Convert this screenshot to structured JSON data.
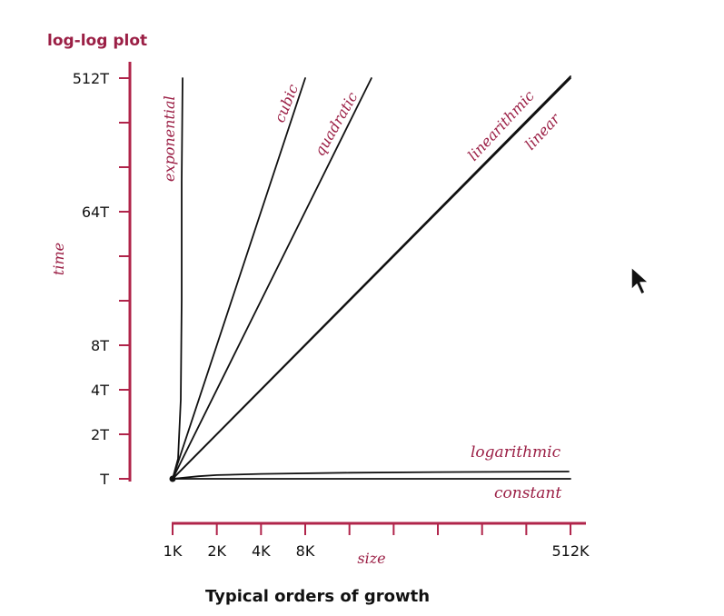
{
  "chart_data": {
    "type": "line",
    "title": "log-log plot",
    "caption": "Typical orders of growth",
    "xlabel": "size",
    "ylabel": "time",
    "x_scale": "log2",
    "y_scale": "log2",
    "x_ticks": [
      "1K",
      "2K",
      "4K",
      "8K",
      "512K"
    ],
    "y_ticks": [
      "T",
      "2T",
      "4T",
      "8T",
      "64T",
      "512T"
    ],
    "series": [
      {
        "name": "exponential",
        "x": [
          1,
          1.0005,
          1.002,
          1.005,
          1.01,
          1.02
        ],
        "y": [
          1,
          2,
          8,
          64,
          512,
          512
        ]
      },
      {
        "name": "cubic",
        "x": [
          1,
          8
        ],
        "y": [
          1,
          512
        ]
      },
      {
        "name": "quadratic",
        "x": [
          1,
          22.6
        ],
        "y": [
          1,
          512
        ]
      },
      {
        "name": "linearithmic",
        "x": [
          1,
          512
        ],
        "y": [
          1,
          630
        ]
      },
      {
        "name": "linear",
        "x": [
          1,
          512
        ],
        "y": [
          1,
          512
        ]
      },
      {
        "name": "logarithmic",
        "x": [
          1,
          1.5,
          2,
          4,
          16,
          64,
          512
        ],
        "y": [
          1,
          1.04,
          1.06,
          1.08,
          1.1,
          1.11,
          1.12
        ]
      },
      {
        "name": "constant",
        "x": [
          1,
          512
        ],
        "y": [
          1,
          1
        ]
      }
    ],
    "colors": {
      "axis": "#b0244a",
      "label": "#9b1f45",
      "line": "#111111"
    }
  }
}
